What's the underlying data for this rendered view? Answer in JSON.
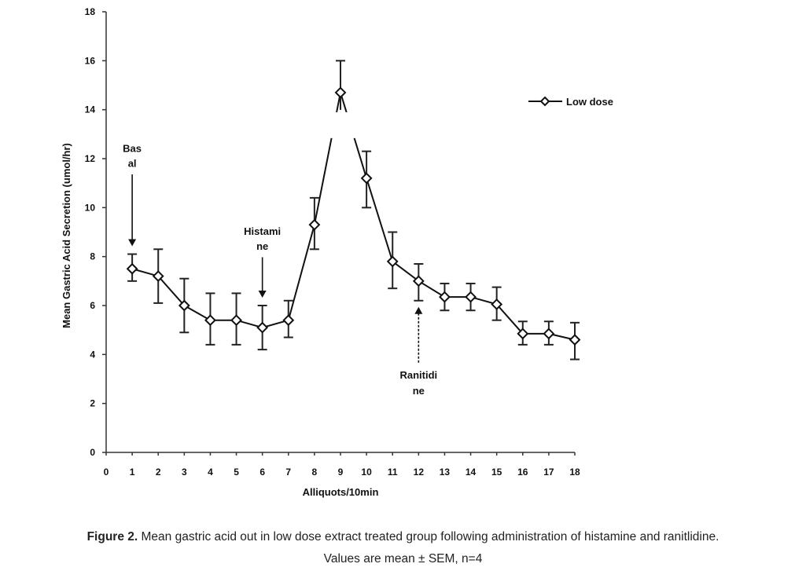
{
  "chart_data": {
    "type": "line",
    "title": "",
    "xlabel": "Alliquots/10min",
    "ylabel": "Mean Gastric Acid Secretion (umol/hr)",
    "xlim": [
      0,
      18
    ],
    "ylim": [
      0,
      18
    ],
    "x_ticks": [
      "0",
      "1",
      "2",
      "3",
      "4",
      "5",
      "6",
      "7",
      "8",
      "9",
      "10",
      "11",
      "12",
      "13",
      "14",
      "15",
      "16",
      "17",
      "18"
    ],
    "y_ticks": [
      "0",
      "2",
      "4",
      "6",
      "8",
      "10",
      "12",
      "14",
      "16",
      "18"
    ],
    "grid": false,
    "legend_position": "top-right",
    "series": [
      {
        "name": "Low dose",
        "x": [
          1,
          2,
          3,
          4,
          5,
          6,
          7,
          8,
          9,
          10,
          11,
          12,
          13,
          14,
          15,
          16,
          17,
          18
        ],
        "y": [
          7.5,
          7.2,
          6.0,
          5.4,
          5.4,
          5.1,
          5.4,
          9.3,
          14.7,
          11.2,
          7.8,
          7.0,
          6.35,
          6.35,
          6.05,
          4.85,
          4.85,
          4.6
        ],
        "error_upper": [
          8.1,
          8.3,
          7.1,
          6.5,
          6.5,
          6.0,
          6.2,
          10.4,
          16.0,
          12.3,
          9.0,
          7.7,
          6.9,
          6.9,
          6.75,
          5.35,
          5.35,
          5.3
        ],
        "error_lower": [
          7.0,
          6.1,
          4.9,
          4.4,
          4.4,
          4.2,
          4.7,
          8.3,
          13.5,
          10.0,
          6.7,
          6.2,
          5.8,
          5.8,
          5.4,
          4.4,
          4.4,
          3.8
        ]
      }
    ],
    "annotations": [
      {
        "lines": [
          "Bas",
          "al"
        ],
        "x": 1,
        "direction": "down"
      },
      {
        "lines": [
          "Histami",
          "ne"
        ],
        "x": 6,
        "direction": "down"
      },
      {
        "lines": [
          "Ranitidi",
          "ne"
        ],
        "x": 12,
        "direction": "up"
      }
    ]
  },
  "caption": {
    "label": "Figure 2.",
    "text": " Mean gastric acid out in low dose extract treated group following administration of histamine and ranitlidine.",
    "line2": "Values are mean ± SEM, n=4"
  }
}
